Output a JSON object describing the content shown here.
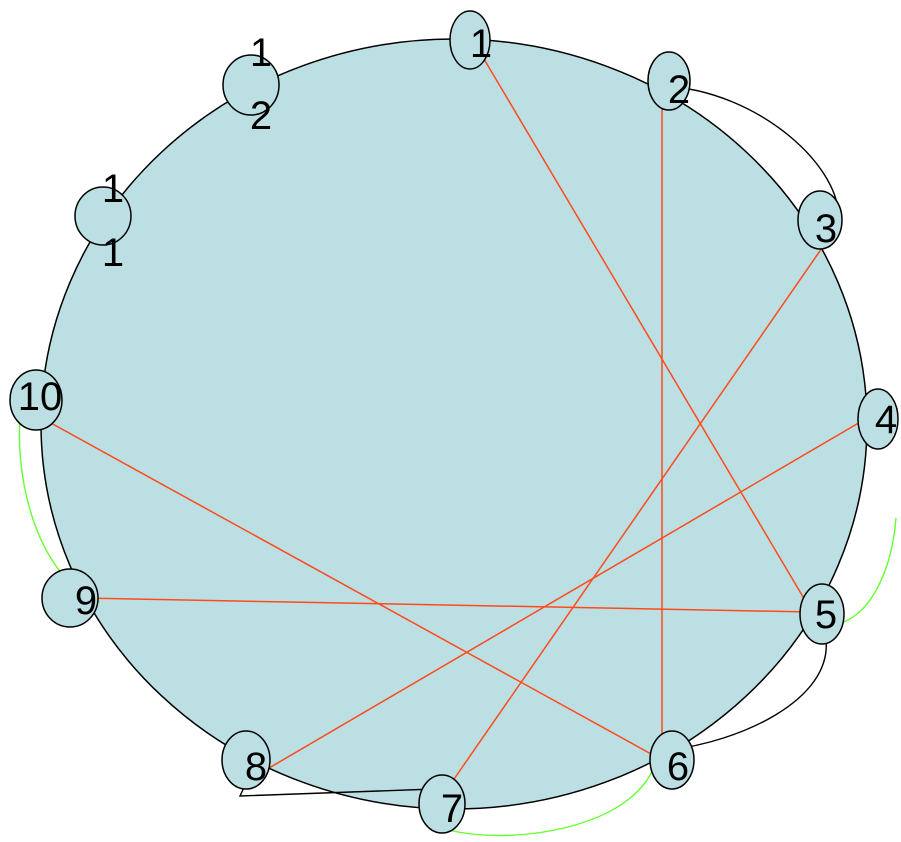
{
  "colors": {
    "background_circle": "#bcdfe3",
    "node_fill": "#bcdfe3",
    "outline": "#000000",
    "chord": "#ff4a1a",
    "black_arc": "#000000",
    "green_arc": "#66ff33"
  },
  "nodes": [
    {
      "id": "n1",
      "label_lines": [
        "1"
      ]
    },
    {
      "id": "n2",
      "label_lines": [
        "2"
      ]
    },
    {
      "id": "n3",
      "label_lines": [
        "3"
      ]
    },
    {
      "id": "n4",
      "label_lines": [
        "4"
      ]
    },
    {
      "id": "n5",
      "label_lines": [
        "5"
      ]
    },
    {
      "id": "n6",
      "label_lines": [
        "6"
      ]
    },
    {
      "id": "n7",
      "label_lines": [
        "7"
      ]
    },
    {
      "id": "n8",
      "label_lines": [
        "8"
      ]
    },
    {
      "id": "n9",
      "label_lines": [
        "9"
      ]
    },
    {
      "id": "n10",
      "label_lines": [
        "10"
      ]
    },
    {
      "id": "n11",
      "label_lines": [
        "1",
        "1"
      ]
    },
    {
      "id": "n12",
      "label_lines": [
        "1",
        "2"
      ]
    }
  ],
  "edges": [
    {
      "from": "n1",
      "to": "n5",
      "kind": "chord"
    },
    {
      "from": "n2",
      "to": "n6",
      "kind": "chord"
    },
    {
      "from": "n3",
      "to": "n7",
      "kind": "chord"
    },
    {
      "from": "n4",
      "to": "n8",
      "kind": "chord"
    },
    {
      "from": "n5",
      "to": "n9",
      "kind": "chord"
    },
    {
      "from": "n6",
      "to": "n10",
      "kind": "chord"
    },
    {
      "from": "n2",
      "to": "n3",
      "kind": "black-arc"
    },
    {
      "from": "n5",
      "to": "n6",
      "kind": "black-arc"
    },
    {
      "from": "n7",
      "to": "n8",
      "kind": "black-arc"
    },
    {
      "from": "n9",
      "to": "n10",
      "kind": "green-arc"
    },
    {
      "from": "n4",
      "to": "n5",
      "kind": "green-arc"
    },
    {
      "from": "n6",
      "to": "n7",
      "kind": "green-arc"
    }
  ]
}
